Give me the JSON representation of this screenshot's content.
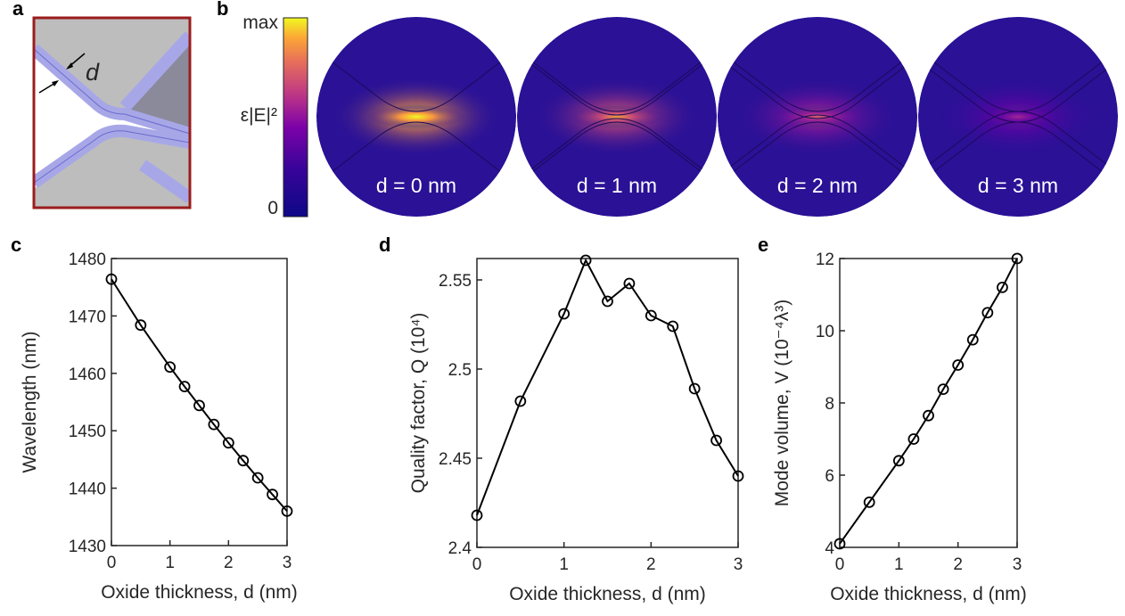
{
  "panel_labels": [
    "a",
    "b",
    "c",
    "d",
    "e"
  ],
  "schematic": {
    "label": "d"
  },
  "colorbar": {
    "label": "ε|E|²",
    "max": "max",
    "min": "0"
  },
  "field_maps": [
    "d = 0 nm",
    "d = 1 nm",
    "d = 2 nm",
    "d = 3 nm"
  ],
  "chart_data": [
    {
      "type": "line",
      "x_label": "Oxide thickness, d (nm)",
      "y_label": "Wavelength (nm)",
      "x": [
        0,
        0.5,
        1,
        1.25,
        1.5,
        1.75,
        2,
        2.25,
        2.5,
        2.75,
        3
      ],
      "values": [
        1476.4,
        1468.4,
        1461.1,
        1457.7,
        1454.4,
        1451.1,
        1447.9,
        1444.8,
        1441.8,
        1438.9,
        1436.0
      ],
      "color": "#000000",
      "marker": "circle-open",
      "xlim": [
        0,
        3
      ],
      "xticks": [
        0,
        1,
        2,
        3
      ],
      "ylim": [
        1430,
        1480
      ],
      "yticks": [
        1430,
        1440,
        1450,
        1460,
        1470,
        1480
      ]
    },
    {
      "type": "line",
      "x_label": "Oxide thickness, d (nm)",
      "y_label": "Quality factor, Q (10⁴)",
      "x": [
        0,
        0.5,
        1,
        1.25,
        1.5,
        1.75,
        2,
        2.25,
        2.5,
        2.75,
        3
      ],
      "values": [
        2.418,
        2.482,
        2.531,
        2.561,
        2.538,
        2.548,
        2.53,
        2.524,
        2.489,
        2.46,
        2.44
      ],
      "color": "#000000",
      "marker": "circle-open",
      "xlim": [
        0,
        3
      ],
      "xticks": [
        0,
        1,
        2,
        3
      ],
      "ylim": [
        2.4,
        2.562
      ],
      "yticks": [
        2.4,
        2.45,
        2.5,
        2.55
      ]
    },
    {
      "type": "line",
      "x_label": "Oxide thickness, d (nm)",
      "y_label": "Mode volume, V (10⁻⁴λ³)",
      "x": [
        0,
        0.5,
        1,
        1.25,
        1.5,
        1.75,
        2,
        2.25,
        2.5,
        2.75,
        3
      ],
      "values": [
        4.1,
        5.25,
        6.4,
        7.0,
        7.65,
        8.38,
        9.05,
        9.75,
        10.5,
        11.2,
        12.0
      ],
      "color": "#000000",
      "marker": "circle-open",
      "xlim": [
        0,
        3
      ],
      "xticks": [
        0,
        1,
        2,
        3
      ],
      "ylim": [
        4,
        12
      ],
      "yticks": [
        4,
        6,
        8,
        10,
        12
      ]
    }
  ]
}
